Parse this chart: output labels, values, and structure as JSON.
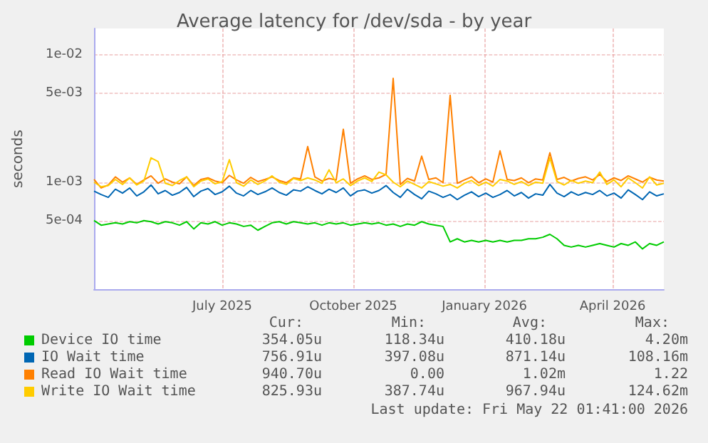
{
  "chart_data": {
    "type": "line",
    "title": "Average latency for /dev/sda - by year",
    "ylabel": "seconds",
    "x": [
      "2025-04-17",
      "2025-04-22",
      "2025-04-27",
      "2025-05-02",
      "2025-05-07",
      "2025-05-12",
      "2025-05-17",
      "2025-05-22",
      "2025-05-27",
      "2025-06-01",
      "2025-06-06",
      "2025-06-11",
      "2025-06-16",
      "2025-06-21",
      "2025-06-26",
      "2025-07-01",
      "2025-07-06",
      "2025-07-11",
      "2025-07-16",
      "2025-07-21",
      "2025-07-26",
      "2025-07-31",
      "2025-08-05",
      "2025-08-10",
      "2025-08-15",
      "2025-08-20",
      "2025-08-25",
      "2025-08-30",
      "2025-09-04",
      "2025-09-09",
      "2025-09-14",
      "2025-09-19",
      "2025-09-24",
      "2025-09-29",
      "2025-10-04",
      "2025-10-09",
      "2025-10-14",
      "2025-10-19",
      "2025-10-24",
      "2025-10-29",
      "2025-11-03",
      "2025-11-08",
      "2025-11-13",
      "2025-11-18",
      "2025-11-23",
      "2025-11-28",
      "2025-12-03",
      "2025-12-08",
      "2025-12-13",
      "2025-12-18",
      "2025-12-23",
      "2025-12-28",
      "2026-01-02",
      "2026-01-07",
      "2026-01-12",
      "2026-01-17",
      "2026-01-22",
      "2026-01-27",
      "2026-02-01",
      "2026-02-06",
      "2026-02-11",
      "2026-02-16",
      "2026-02-21",
      "2026-02-26",
      "2026-03-03",
      "2026-03-08",
      "2026-03-13",
      "2026-03-18",
      "2026-03-23",
      "2026-03-28",
      "2026-04-02",
      "2026-04-07",
      "2026-04-12",
      "2026-04-17",
      "2026-04-22",
      "2026-04-27",
      "2026-05-02",
      "2026-05-07",
      "2026-05-12",
      "2026-05-17",
      "2026-05-22"
    ],
    "series": [
      {
        "name": "Device IO time",
        "color": "#00cc00",
        "values": [
          0.0005,
          0.00046,
          0.00047,
          0.00048,
          0.00047,
          0.00049,
          0.00048,
          0.0005,
          0.00049,
          0.00047,
          0.00049,
          0.00048,
          0.00046,
          0.00049,
          0.00043,
          0.00048,
          0.00047,
          0.00049,
          0.00046,
          0.00048,
          0.00047,
          0.00045,
          0.00046,
          0.00042,
          0.00045,
          0.00048,
          0.00049,
          0.00047,
          0.00049,
          0.00048,
          0.00047,
          0.00048,
          0.00046,
          0.00048,
          0.00047,
          0.00048,
          0.00046,
          0.00047,
          0.00048,
          0.00047,
          0.00048,
          0.00046,
          0.00047,
          0.00045,
          0.00047,
          0.00046,
          0.00049,
          0.00047,
          0.00046,
          0.00045,
          0.00034,
          0.00036,
          0.00034,
          0.00035,
          0.00034,
          0.00035,
          0.00034,
          0.00035,
          0.00034,
          0.00035,
          0.00035,
          0.00036,
          0.00036,
          0.00037,
          0.00039,
          0.00036,
          0.00032,
          0.00031,
          0.00032,
          0.00031,
          0.00032,
          0.00033,
          0.00032,
          0.00031,
          0.00033,
          0.00032,
          0.00034,
          0.0003,
          0.00033,
          0.00032,
          0.00034
        ]
      },
      {
        "name": "IO Wait time",
        "color": "#0066b3",
        "values": [
          0.00085,
          0.0008,
          0.00076,
          0.00088,
          0.00082,
          0.0009,
          0.00078,
          0.00084,
          0.00095,
          0.00081,
          0.00086,
          0.00079,
          0.00083,
          0.00091,
          0.00077,
          0.00085,
          0.00089,
          0.0008,
          0.00084,
          0.00093,
          0.00082,
          0.00078,
          0.00086,
          0.0008,
          0.00084,
          0.0009,
          0.00083,
          0.00079,
          0.00087,
          0.00085,
          0.00092,
          0.00086,
          0.00081,
          0.00088,
          0.00083,
          0.0009,
          0.00078,
          0.00085,
          0.00087,
          0.00082,
          0.00086,
          0.00094,
          0.00083,
          0.00076,
          0.00088,
          0.0008,
          0.00074,
          0.00085,
          0.00081,
          0.00076,
          0.0008,
          0.00073,
          0.00079,
          0.00084,
          0.00077,
          0.00082,
          0.00076,
          0.0008,
          0.00086,
          0.00078,
          0.00083,
          0.00075,
          0.00081,
          0.00079,
          0.00096,
          0.00082,
          0.00077,
          0.00084,
          0.00079,
          0.00083,
          0.0008,
          0.00086,
          0.00078,
          0.00082,
          0.00075,
          0.00087,
          0.0008,
          0.00073,
          0.00084,
          0.00078,
          0.00081
        ]
      },
      {
        "name": "Read IO Wait time",
        "color": "#ff8000",
        "values": [
          0.00105,
          0.0009,
          0.00095,
          0.0011,
          0.001,
          0.00108,
          0.00096,
          0.00104,
          0.00112,
          0.00098,
          0.00106,
          0.001,
          0.00097,
          0.0011,
          0.00094,
          0.00105,
          0.00108,
          0.00102,
          0.00099,
          0.00113,
          0.00104,
          0.00098,
          0.00109,
          0.00101,
          0.00105,
          0.0011,
          0.00103,
          0.00099,
          0.00108,
          0.00106,
          0.0019,
          0.0011,
          0.00102,
          0.00107,
          0.00104,
          0.0026,
          0.00098,
          0.00106,
          0.00112,
          0.00105,
          0.00108,
          0.00115,
          0.0065,
          0.00096,
          0.00107,
          0.00102,
          0.0016,
          0.00105,
          0.00108,
          0.00099,
          0.0048,
          0.00098,
          0.00104,
          0.0011,
          0.00099,
          0.00106,
          0.001,
          0.00176,
          0.00105,
          0.00103,
          0.00108,
          0.00099,
          0.00106,
          0.00104,
          0.0017,
          0.00105,
          0.00109,
          0.00102,
          0.00107,
          0.0011,
          0.00104,
          0.00115,
          0.00101,
          0.00108,
          0.00103,
          0.00112,
          0.00106,
          0.001,
          0.00109,
          0.00104,
          0.00102
        ]
      },
      {
        "name": "Write IO Wait time",
        "color": "#ffcc00",
        "values": [
          0.001,
          0.00092,
          0.00094,
          0.00105,
          0.00096,
          0.00108,
          0.00095,
          0.00102,
          0.00155,
          0.00145,
          0.00098,
          0.00094,
          0.00103,
          0.0011,
          0.00092,
          0.00102,
          0.00106,
          0.00097,
          0.00101,
          0.0015,
          0.00099,
          0.00093,
          0.00104,
          0.00096,
          0.00102,
          0.00112,
          0.001,
          0.00096,
          0.00107,
          0.00103,
          0.00108,
          0.00104,
          0.00098,
          0.00125,
          0.00099,
          0.00106,
          0.00094,
          0.00102,
          0.00108,
          0.00101,
          0.0012,
          0.00114,
          0.001,
          0.00092,
          0.00102,
          0.00096,
          0.0009,
          0.00101,
          0.00097,
          0.00093,
          0.00096,
          0.0009,
          0.00098,
          0.00103,
          0.00094,
          0.001,
          0.00093,
          0.00105,
          0.00102,
          0.00096,
          0.00101,
          0.00094,
          0.001,
          0.00098,
          0.00155,
          0.00101,
          0.00095,
          0.00103,
          0.00098,
          0.00102,
          0.00099,
          0.0012,
          0.00096,
          0.00104,
          0.00092,
          0.00108,
          0.00099,
          0.0009,
          0.0011,
          0.00095,
          0.00098
        ]
      }
    ],
    "xlim": [
      "2025-04-17",
      "2026-05-22"
    ],
    "xticks": [
      {
        "value": "2025-07-16",
        "label": "July 2025"
      },
      {
        "value": "2025-10-16",
        "label": "October 2025"
      },
      {
        "value": "2026-01-16",
        "label": "January 2026"
      },
      {
        "value": "2026-04-16",
        "label": "April 2026"
      }
    ],
    "ylim": [
      0.000145,
      0.016
    ],
    "yticks": [
      {
        "value": 0.0005,
        "label": "5e-04"
      },
      {
        "value": 0.001,
        "label": "1e-03"
      },
      {
        "value": 0.005,
        "label": "5e-03"
      },
      {
        "value": 0.01,
        "label": "1e-02"
      }
    ],
    "log": "y",
    "grid": true,
    "legend": "bottom",
    "marker": "none",
    "line_style": "solid",
    "annotations": [
      "Cur:",
      "Min:",
      "Avg:",
      "Max:",
      "354.05u",
      "118.34u",
      "410.18u",
      "4.20m",
      "756.91u",
      "397.08u",
      "871.14u",
      "108.16m",
      "940.70u",
      "0.00",
      "1.02m",
      "1.22",
      "825.93u",
      "387.74u",
      "967.94u",
      "124.62m",
      "Last update: Fri May 22 01:41:00 2026"
    ]
  }
}
